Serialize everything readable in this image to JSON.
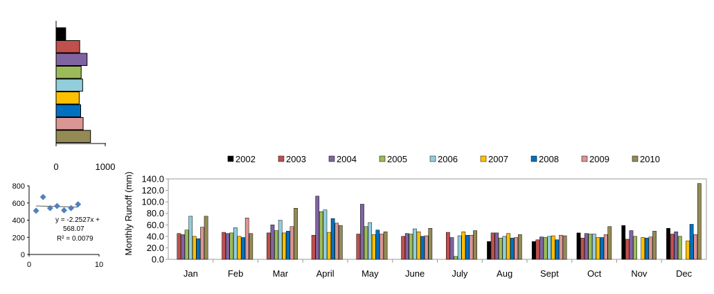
{
  "chart_data": [
    {
      "type": "bar",
      "orientation": "horizontal",
      "categories": [
        "2002",
        "2003",
        "2004",
        "2005",
        "2006",
        "2007",
        "2008",
        "2009",
        "2010"
      ],
      "values": [
        195,
        480,
        630,
        510,
        540,
        470,
        500,
        550,
        700
      ],
      "xlim": [
        0,
        1000
      ],
      "xticks": [
        "0",
        "1000"
      ],
      "grid": false
    },
    {
      "type": "scatter",
      "x": [
        1,
        2,
        3,
        4,
        5,
        6,
        7
      ],
      "y": [
        510,
        670,
        540,
        565,
        515,
        540,
        585
      ],
      "xlim": [
        0,
        10
      ],
      "ylim": [
        0,
        800
      ],
      "xticks": [
        "0",
        "10"
      ],
      "yticks": [
        "0",
        "200",
        "400",
        "600",
        "800"
      ],
      "trendline": {
        "slope": -2.2527,
        "intercept": 568.07
      },
      "equation_lines": [
        "y = -2.2527x +",
        "568.07"
      ],
      "r2_label": "R² = 0.0079",
      "marker_color": "#4F81BD"
    },
    {
      "type": "bar",
      "categories": [
        "Jan",
        "Feb",
        "Mar",
        "April",
        "May",
        "June",
        "July",
        "Aug",
        "Sept",
        "Oct",
        "Nov",
        "Dec"
      ],
      "series": [
        {
          "name": "2002",
          "color": "#000000",
          "values": [
            0,
            0,
            0,
            0,
            0,
            0,
            0,
            31,
            31,
            46,
            59,
            54
          ]
        },
        {
          "name": "2003",
          "color": "#C0504D",
          "values": [
            45,
            47,
            46,
            42,
            44,
            40,
            47,
            46,
            34,
            37,
            35,
            44
          ]
        },
        {
          "name": "2004",
          "color": "#8064A2",
          "values": [
            43,
            45,
            60,
            110,
            96,
            45,
            38,
            46,
            39,
            45,
            50,
            48
          ]
        },
        {
          "name": "2005",
          "color": "#9BBB59",
          "values": [
            51,
            46,
            50,
            83,
            57,
            44,
            5,
            37,
            38,
            44,
            40,
            40
          ]
        },
        {
          "name": "2006",
          "color": "#92CDDC",
          "values": [
            75,
            55,
            68,
            86,
            64,
            53,
            41,
            40,
            40,
            44,
            0,
            0
          ]
        },
        {
          "name": "2007",
          "color": "#FFC000",
          "values": [
            40,
            40,
            46,
            47,
            43,
            48,
            48,
            45,
            41,
            38,
            38,
            32
          ]
        },
        {
          "name": "2008",
          "color": "#0070C0",
          "values": [
            36,
            38,
            49,
            71,
            51,
            40,
            42,
            37,
            34,
            38,
            37,
            61
          ]
        },
        {
          "name": "2009",
          "color": "#D99694",
          "values": [
            56,
            72,
            57,
            63,
            44,
            41,
            42,
            38,
            42,
            43,
            39,
            43
          ]
        },
        {
          "name": "2010",
          "color": "#948A54",
          "values": [
            75,
            45,
            89,
            59,
            48,
            54,
            50,
            43,
            41,
            57,
            49,
            132
          ]
        }
      ],
      "ylabel": "Monthly  Runoff (mm)",
      "ylim": [
        0,
        140
      ],
      "yticks": [
        "0.0",
        "20.0",
        "40.0",
        "60.0",
        "80.0",
        "100.0",
        "120.0",
        "140.0"
      ],
      "legend_position": "top",
      "grid": false
    }
  ]
}
